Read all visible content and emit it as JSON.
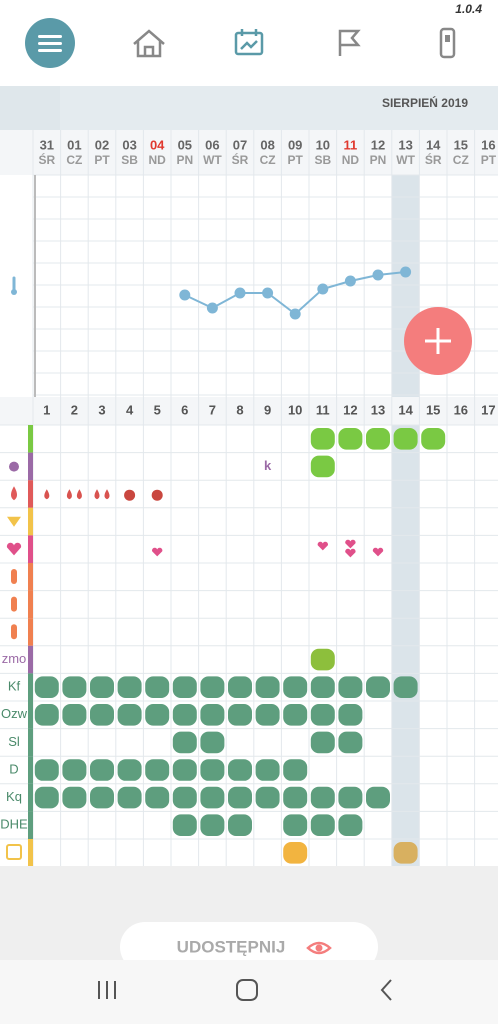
{
  "header": {
    "version": "1.0.4",
    "month": "SIERPIEŃ 2019"
  },
  "dates": [
    {
      "day": "31",
      "weekday": "ŚR"
    },
    {
      "day": "01",
      "weekday": "CZ"
    },
    {
      "day": "02",
      "weekday": "PT"
    },
    {
      "day": "03",
      "weekday": "SB"
    },
    {
      "day": "04",
      "weekday": "ND"
    },
    {
      "day": "05",
      "weekday": "PN"
    },
    {
      "day": "06",
      "weekday": "WT"
    },
    {
      "day": "07",
      "weekday": "ŚR"
    },
    {
      "day": "08",
      "weekday": "CZ"
    },
    {
      "day": "09",
      "weekday": "PT"
    },
    {
      "day": "10",
      "weekday": "SB"
    },
    {
      "day": "11",
      "weekday": "ND"
    },
    {
      "day": "12",
      "weekday": "PN"
    },
    {
      "day": "13",
      "weekday": "WT"
    },
    {
      "day": "14",
      "weekday": "ŚR"
    },
    {
      "day": "15",
      "weekday": "CZ"
    },
    {
      "day": "16",
      "weekday": "PT"
    }
  ],
  "cycle_days": [
    1,
    2,
    3,
    4,
    5,
    6,
    7,
    8,
    9,
    10,
    11,
    12,
    13,
    14,
    15,
    16,
    17
  ],
  "row_labels": [
    "zmo",
    "Kf",
    "Ozw",
    "Sl",
    "D",
    "Kq",
    "DHE"
  ],
  "cell_note": "k",
  "share_button": "UDOSTĘPNIJ"
}
